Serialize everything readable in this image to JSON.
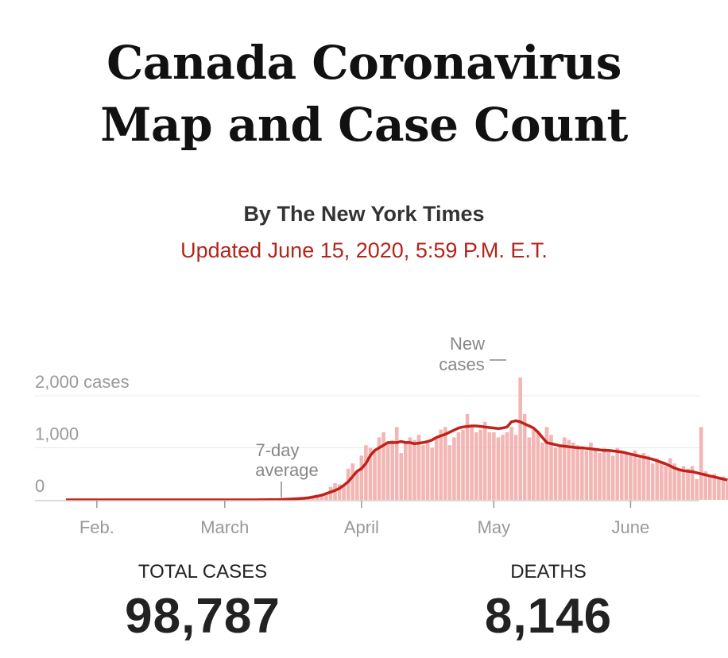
{
  "header": {
    "title_line1": "Canada Coronavirus",
    "title_line2": "Map and Case Count",
    "byline": "By The New York Times",
    "updated": "Updated June 15, 2020, 5:59 P.M. E.T."
  },
  "stats": {
    "total_cases_label": "TOTAL CASES",
    "total_cases_value": "98,787",
    "deaths_label": "DEATHS",
    "deaths_value": "8,146"
  },
  "colors": {
    "bar": "#f2b6b4",
    "line": "#c0221b",
    "accent": "#b3241b"
  },
  "chart_data": {
    "type": "bar",
    "y_unit_label": "cases",
    "yticks": [
      {
        "value": 0,
        "label": "0"
      },
      {
        "value": 1000,
        "label": "1,000"
      },
      {
        "value": 2000,
        "label": "2,000 cases"
      }
    ],
    "xticks": [
      {
        "date": "2020-02-01",
        "label": "Feb."
      },
      {
        "date": "2020-03-01",
        "label": "March"
      },
      {
        "date": "2020-04-01",
        "label": "April"
      },
      {
        "date": "2020-05-01",
        "label": "May"
      },
      {
        "date": "2020-06-01",
        "label": "June"
      }
    ],
    "annotations": {
      "new_cases": "New cases",
      "average": "7-day average"
    },
    "series": [
      {
        "name": "New cases",
        "x_start": "2020-01-25",
        "values": [
          0,
          0,
          0,
          0,
          0,
          0,
          0,
          0,
          0,
          0,
          0,
          0,
          0,
          0,
          0,
          0,
          0,
          0,
          0,
          0,
          0,
          0,
          0,
          0,
          0,
          0,
          0,
          0,
          0,
          0,
          0,
          0,
          0,
          0,
          0,
          0,
          0,
          0,
          0,
          0,
          0,
          2,
          0,
          0,
          3,
          2,
          4,
          6,
          8,
          10,
          15,
          20,
          30,
          40,
          35,
          50,
          80,
          100,
          120,
          130,
          250,
          320,
          300,
          280,
          600,
          700,
          550,
          850,
          1050,
          1000,
          950,
          1200,
          1300,
          1100,
          1150,
          1400,
          900,
          1100,
          1200,
          1150,
          1250,
          1050,
          1100,
          1000,
          1200,
          1350,
          1400,
          1050,
          1200,
          1300,
          1350,
          1650,
          1400,
          1300,
          1350,
          1500,
          1300,
          1300,
          1200,
          1250,
          1300,
          1400,
          1250,
          2350,
          1650,
          1200,
          1350,
          1300,
          1100,
          1400,
          1250,
          1000,
          1050,
          1200,
          1150,
          1100,
          1050,
          1000,
          950,
          1100,
          950,
          900,
          1000,
          950,
          850,
          1000,
          900,
          900,
          850,
          950,
          800,
          900,
          850,
          700,
          800,
          750,
          650,
          800,
          700,
          600,
          650,
          600,
          650,
          400,
          1400,
          550,
          450,
          500,
          400,
          450,
          350,
          350,
          300
        ]
      },
      {
        "name": "7-day average",
        "values": [
          0,
          0,
          0,
          0,
          0,
          0,
          0,
          0,
          0,
          0,
          0,
          0,
          0,
          0,
          0,
          0,
          0,
          0,
          0,
          0,
          0,
          0,
          0,
          0,
          0,
          0,
          0,
          0,
          0,
          0,
          0,
          0,
          0,
          0,
          0,
          0,
          0,
          0,
          0,
          0,
          0,
          0,
          0,
          0,
          1,
          2,
          3,
          4,
          5,
          8,
          10,
          15,
          20,
          25,
          30,
          40,
          55,
          70,
          90,
          120,
          150,
          180,
          220,
          280,
          350,
          450,
          550,
          600,
          700,
          850,
          950,
          1000,
          1050,
          1100,
          1100,
          1100,
          1120,
          1100,
          1100,
          1080,
          1090,
          1100,
          1120,
          1150,
          1200,
          1230,
          1260,
          1300,
          1340,
          1380,
          1400,
          1410,
          1420,
          1420,
          1410,
          1400,
          1390,
          1380,
          1370,
          1380,
          1400,
          1500,
          1520,
          1500,
          1460,
          1420,
          1380,
          1300,
          1200,
          1100,
          1080,
          1060,
          1040,
          1030,
          1020,
          1010,
          1000,
          1000,
          990,
          980,
          970,
          960,
          950,
          950,
          940,
          930,
          920,
          900,
          880,
          860,
          840,
          820,
          800,
          780,
          750,
          720,
          690,
          650,
          610,
          580,
          560,
          550,
          540,
          520,
          500,
          480,
          460,
          440,
          420,
          400,
          380
        ]
      }
    ]
  }
}
